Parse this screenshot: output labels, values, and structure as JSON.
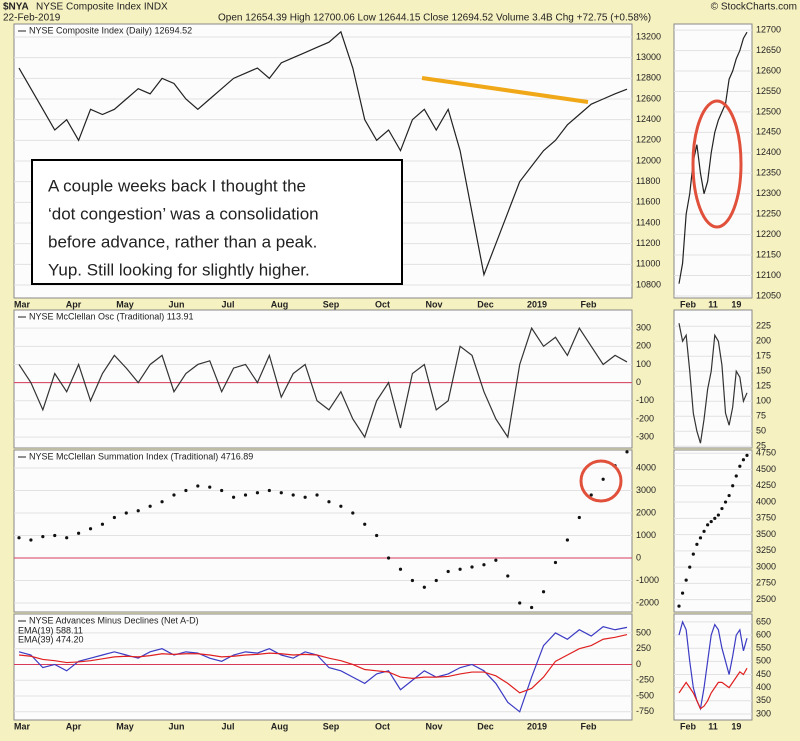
{
  "header": {
    "symbol": "$NYA",
    "name": "NYSE Composite Index INDX",
    "date": "22-Feb-2019",
    "quote": "Open 12654.39 High 12700.06 Low 12644.15 Close 12694.52 Volume 3.4B Chg +72.75 (+0.58%)",
    "credit": "© StockCharts.com"
  },
  "annotation": [
    "A couple weeks back I thought the",
    "‘dot congestion’ was a consolidation",
    "before advance, rather than a peak.",
    "Yup. Still looking for slightly higher."
  ],
  "chart_data": [
    {
      "type": "line",
      "title": "NYSE Composite Index (Daily) 12694.52",
      "color": "#222222",
      "x_labels": [
        "Mar",
        "Apr",
        "May",
        "Jun",
        "Jul",
        "Aug",
        "Sep",
        "Oct",
        "Nov",
        "Dec",
        "2019",
        "Feb"
      ],
      "values": [
        12900,
        12700,
        12500,
        12300,
        12400,
        12200,
        12500,
        12450,
        12500,
        12600,
        12700,
        12650,
        12800,
        12750,
        12600,
        12500,
        12600,
        12700,
        12800,
        12850,
        12900,
        12800,
        12950,
        13000,
        13050,
        13100,
        13150,
        13250,
        12900,
        12400,
        12200,
        12300,
        12100,
        12400,
        12500,
        12300,
        12500,
        12100,
        11500,
        10900,
        11200,
        11500,
        11800,
        11950,
        12100,
        12200,
        12350,
        12450,
        12550,
        12600,
        12650,
        12695
      ],
      "ylim": [
        10674,
        13326
      ],
      "yticks": [
        10800,
        11000,
        11200,
        11400,
        11600,
        11800,
        12000,
        12200,
        12400,
        12600,
        12800,
        13000,
        13200
      ],
      "grid": true
    },
    {
      "type": "line",
      "color": "#222222",
      "x_labels": [
        "Feb",
        "11",
        "19"
      ],
      "values": [
        12080,
        12130,
        12250,
        12300,
        12380,
        12420,
        12350,
        12300,
        12330,
        12400,
        12450,
        12480,
        12500,
        12520,
        12580,
        12600,
        12630,
        12650,
        12680,
        12695
      ],
      "ylim": [
        12045,
        12715
      ],
      "yticks": [
        12050,
        12100,
        12150,
        12200,
        12250,
        12300,
        12350,
        12400,
        12450,
        12500,
        12550,
        12600,
        12650,
        12700
      ],
      "grid": true
    },
    {
      "type": "line",
      "title": "NYSE McClellan Osc (Traditional) 113.91",
      "color": "#333333",
      "values": [
        100,
        0,
        -150,
        50,
        -50,
        100,
        -100,
        50,
        150,
        80,
        0,
        100,
        150,
        -50,
        50,
        100,
        120,
        -50,
        80,
        100,
        0,
        150,
        -80,
        50,
        100,
        -100,
        -150,
        -50,
        -200,
        -300,
        -100,
        0,
        -250,
        50,
        100,
        -150,
        -100,
        200,
        150,
        -50,
        -200,
        -300,
        100,
        300,
        200,
        250,
        150,
        300,
        200,
        100,
        150,
        114
      ],
      "ylim": [
        -360,
        400
      ],
      "yticks": [
        -300,
        -200,
        -100,
        0,
        100,
        200,
        300
      ],
      "grid": true,
      "zero_line_color": "#d63b5a"
    },
    {
      "type": "line",
      "color": "#333333",
      "values": [
        230,
        200,
        210,
        150,
        80,
        50,
        30,
        70,
        120,
        150,
        210,
        200,
        160,
        80,
        60,
        90,
        150,
        140,
        100,
        114
      ],
      "ylim": [
        22,
        252
      ],
      "yticks": [
        25,
        50,
        75,
        100,
        125,
        150,
        175,
        200,
        225
      ],
      "grid": true
    },
    {
      "type": "dot",
      "title": "NYSE McClellan Summation Index (Traditional) 4716.89",
      "color": "#111111",
      "values": [
        900,
        800,
        950,
        1000,
        900,
        1100,
        1300,
        1500,
        1800,
        2000,
        2100,
        2300,
        2500,
        2800,
        3000,
        3200,
        3150,
        3000,
        2700,
        2800,
        2900,
        3000,
        2900,
        2800,
        2700,
        2800,
        2500,
        2300,
        2000,
        1500,
        1000,
        0,
        -500,
        -1000,
        -1300,
        -1000,
        -600,
        -500,
        -400,
        -300,
        -100,
        -800,
        -2000,
        -2200,
        -1500,
        -200,
        800,
        1800,
        2800,
        3500,
        4100,
        4717
      ],
      "ylim": [
        -2400,
        4800
      ],
      "yticks": [
        -2000,
        -1000,
        0,
        1000,
        2000,
        3000,
        4000
      ],
      "grid": true,
      "zero_line_color": "#d63b5a"
    },
    {
      "type": "dot",
      "color": "#111111",
      "values": [
        2400,
        2600,
        2800,
        3000,
        3200,
        3350,
        3450,
        3550,
        3650,
        3700,
        3750,
        3800,
        3900,
        4000,
        4100,
        4250,
        4400,
        4550,
        4650,
        4717
      ],
      "ylim": [
        2310,
        4800
      ],
      "yticks": [
        2500,
        2750,
        3000,
        3250,
        3500,
        3750,
        4000,
        4250,
        4500,
        4750
      ],
      "grid": true
    },
    {
      "type": "line",
      "title": "NYSE Advances Minus Declines (Net A-D)",
      "legend": true,
      "x_labels": [
        "Mar",
        "Apr",
        "May",
        "Jun",
        "Jul",
        "Aug",
        "Sep",
        "Oct",
        "Nov",
        "Dec",
        "2019",
        "Feb"
      ],
      "series": [
        {
          "name": "EMA(19) 588.11",
          "color": "#3b3bc4",
          "values": [
            200,
            150,
            -50,
            0,
            -100,
            50,
            100,
            150,
            200,
            150,
            100,
            200,
            250,
            150,
            200,
            180,
            100,
            50,
            150,
            200,
            180,
            250,
            150,
            100,
            200,
            150,
            -50,
            -100,
            -200,
            -300,
            -150,
            -100,
            -400,
            -250,
            -100,
            -200,
            -150,
            -50,
            0,
            -100,
            -300,
            -600,
            -750,
            -200,
            300,
            500,
            400,
            550,
            450,
            600,
            550,
            588
          ]
        },
        {
          "name": "EMA(39) 474.20",
          "color": "#e02020",
          "values": [
            150,
            130,
            80,
            60,
            30,
            40,
            60,
            90,
            120,
            130,
            120,
            140,
            170,
            160,
            170,
            170,
            150,
            120,
            130,
            150,
            160,
            180,
            170,
            150,
            160,
            150,
            100,
            60,
            0,
            -80,
            -100,
            -120,
            -200,
            -220,
            -200,
            -200,
            -190,
            -150,
            -120,
            -120,
            -180,
            -300,
            -450,
            -380,
            -200,
            50,
            150,
            250,
            300,
            400,
            430,
            474
          ]
        }
      ],
      "ylim": [
        -880,
        800
      ],
      "yticks": [
        -750,
        -500,
        -250,
        0,
        250,
        500
      ],
      "grid": true,
      "zero_line_color": "#d63b5a"
    },
    {
      "type": "line",
      "x_labels": [
        "Feb",
        "11",
        "19"
      ],
      "series": [
        {
          "color": "#3b3bc4",
          "values": [
            600,
            650,
            620,
            500,
            400,
            350,
            320,
            400,
            500,
            600,
            640,
            620,
            550,
            500,
            450,
            520,
            600,
            620,
            540,
            588
          ]
        },
        {
          "color": "#e02020",
          "values": [
            380,
            400,
            420,
            400,
            380,
            350,
            320,
            330,
            350,
            380,
            400,
            420,
            420,
            410,
            400,
            420,
            440,
            460,
            450,
            474
          ]
        }
      ],
      "ylim": [
        277,
        680
      ],
      "yticks": [
        300,
        350,
        400,
        450,
        500,
        550,
        600,
        650
      ],
      "grid": true
    }
  ]
}
